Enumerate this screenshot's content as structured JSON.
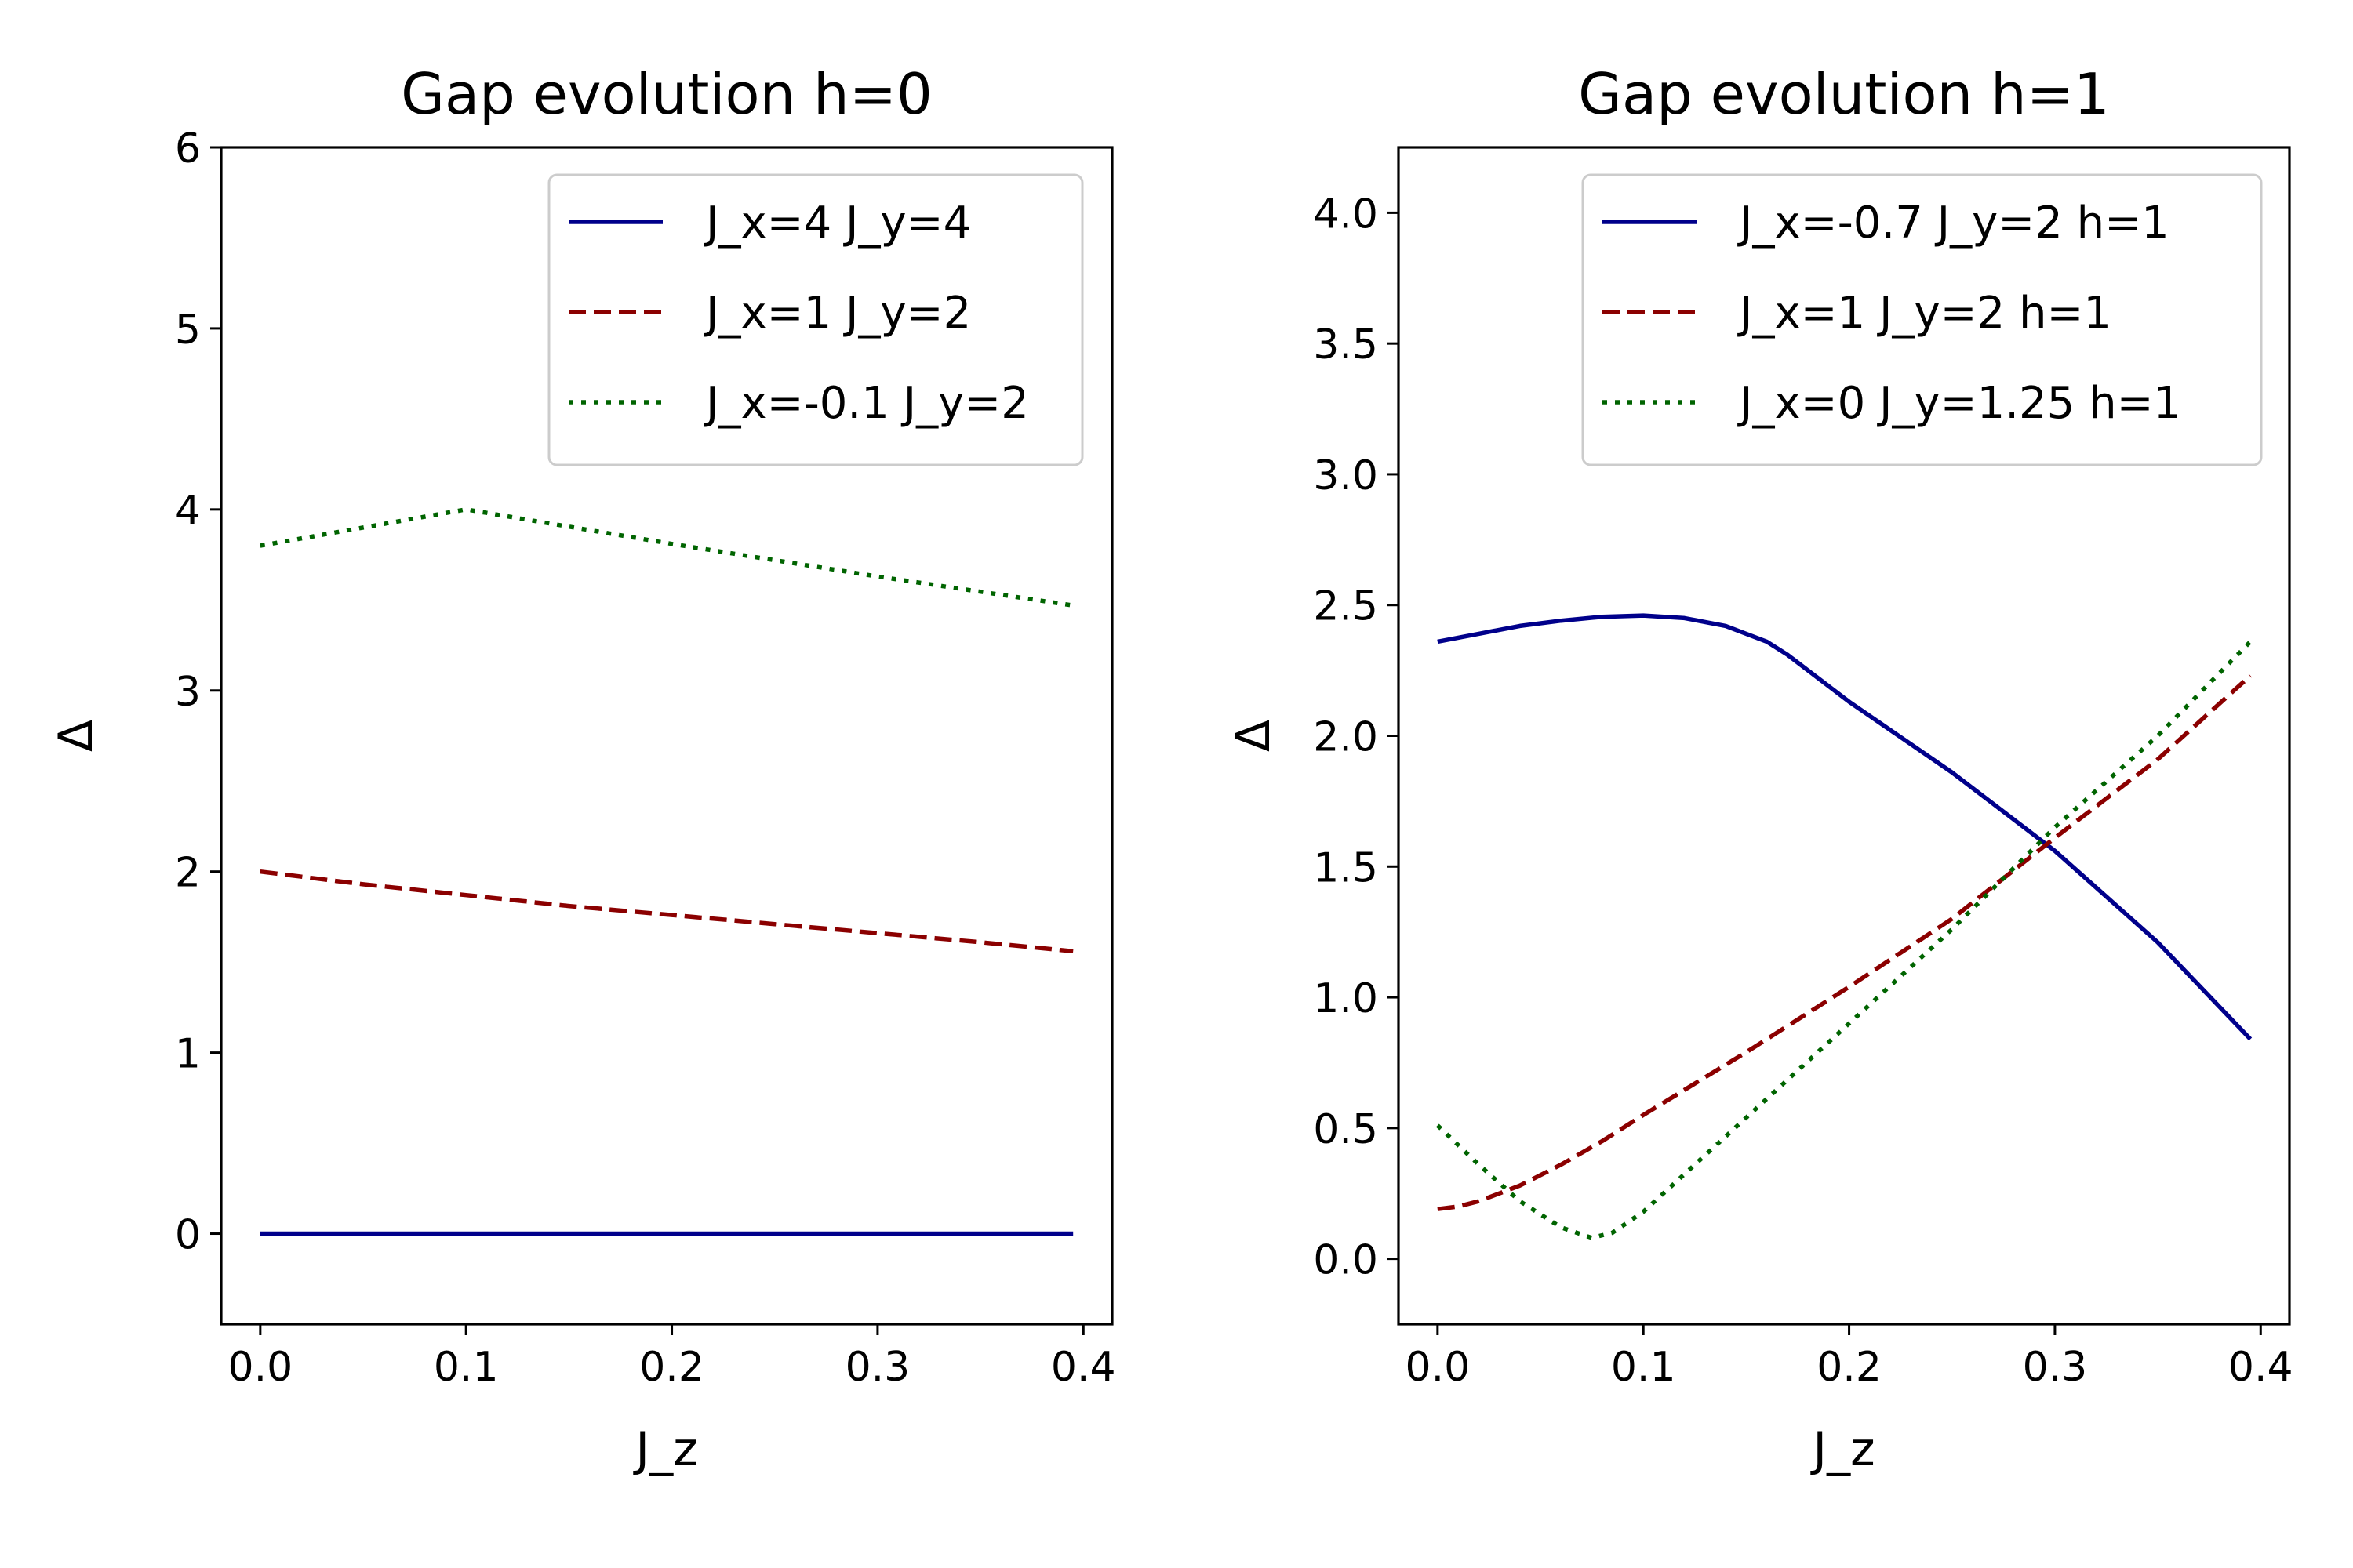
{
  "chart_data": [
    {
      "type": "line",
      "title": "Gap evolution h=0",
      "xlabel": "J_z",
      "ylabel": "Δ",
      "xlim": [
        -0.019,
        0.414
      ],
      "ylim": [
        -0.5,
        6
      ],
      "xticks": [
        "0.0",
        "0.1",
        "0.2",
        "0.3",
        "0.4"
      ],
      "xtick_values": [
        0,
        0.1,
        0.2,
        0.3,
        0.4
      ],
      "yticks": [
        "0",
        "1",
        "2",
        "3",
        "4",
        "5",
        "6"
      ],
      "ytick_values": [
        0,
        1,
        2,
        3,
        4,
        5,
        6
      ],
      "legend_position": "top-right",
      "series": [
        {
          "name": "J_x=4 J_y=4",
          "legend": {
            "a": "J",
            "as": "x",
            "b": "=4 ",
            "c": "J",
            "cs": "y",
            "d": "=4"
          },
          "color": "#00008b",
          "style": "solid",
          "x": [
            0,
            0.1,
            0.2,
            0.3,
            0.395
          ],
          "y": [
            0,
            0,
            0,
            0,
            0
          ]
        },
        {
          "name": "J_x=1 J_y=2",
          "legend": {
            "a": "J",
            "as": "x",
            "b": "=1 ",
            "c": "J",
            "cs": "y",
            "d": "=2"
          },
          "color": "#8b0000",
          "style": "dashed",
          "x": [
            0,
            0.05,
            0.1,
            0.15,
            0.2,
            0.25,
            0.3,
            0.35,
            0.395
          ],
          "y": [
            2.0,
            1.93,
            1.87,
            1.81,
            1.76,
            1.71,
            1.66,
            1.61,
            1.56
          ]
        },
        {
          "name": "J_x=-0.1 J_y=2",
          "legend": {
            "a": "J",
            "as": "x",
            "b": "=-0.1 ",
            "c": "J",
            "cs": "y",
            "d": "=2"
          },
          "color": "#006400",
          "style": "dotted",
          "x": [
            0,
            0.1,
            0.2,
            0.3,
            0.395
          ],
          "y": [
            3.8,
            4.0,
            3.81,
            3.63,
            3.47
          ]
        }
      ]
    },
    {
      "type": "line",
      "title": "Gap evolution h=1",
      "xlabel": "J_z",
      "ylabel": "Δ",
      "xlim": [
        -0.019,
        0.414
      ],
      "ylim": [
        -0.25,
        4.25
      ],
      "xticks": [
        "0.0",
        "0.1",
        "0.2",
        "0.3",
        "0.4"
      ],
      "xtick_values": [
        0,
        0.1,
        0.2,
        0.3,
        0.4
      ],
      "yticks": [
        "0.0",
        "0.5",
        "1.0",
        "1.5",
        "2.0",
        "2.5",
        "3.0",
        "3.5",
        "4.0"
      ],
      "ytick_values": [
        0,
        0.5,
        1.0,
        1.5,
        2.0,
        2.5,
        3.0,
        3.5,
        4.0
      ],
      "legend_position": "top-right",
      "series": [
        {
          "name": "J_x=-0.7 J_y=2 h=1",
          "legend": {
            "a": "J",
            "as": "x",
            "b": "=-0.7 ",
            "c": "J",
            "cs": "y",
            "d": "=2 ",
            "e": "h",
            "f": "=1"
          },
          "color": "#00008b",
          "style": "solid",
          "x": [
            0,
            0.02,
            0.04,
            0.06,
            0.08,
            0.1,
            0.12,
            0.14,
            0.16,
            0.17,
            0.18,
            0.2,
            0.25,
            0.3,
            0.35,
            0.395
          ],
          "y": [
            2.36,
            2.39,
            2.42,
            2.44,
            2.455,
            2.46,
            2.45,
            2.42,
            2.36,
            2.31,
            2.25,
            2.13,
            1.86,
            1.56,
            1.21,
            0.84
          ]
        },
        {
          "name": "J_x=1 J_y=2 h=1",
          "legend": {
            "a": "J",
            "as": "x",
            "b": "=1 ",
            "c": "J",
            "cs": "y",
            "d": "=2 ",
            "e": "h",
            "f": "=1"
          },
          "color": "#8b0000",
          "style": "dashed",
          "x": [
            0,
            0.01,
            0.02,
            0.04,
            0.06,
            0.08,
            0.1,
            0.15,
            0.2,
            0.25,
            0.3,
            0.35,
            0.395
          ],
          "y": [
            0.19,
            0.2,
            0.22,
            0.28,
            0.36,
            0.45,
            0.55,
            0.79,
            1.04,
            1.3,
            1.61,
            1.91,
            2.23
          ]
        },
        {
          "name": "J_x=0 J_y=1.25 h=1",
          "legend": {
            "a": "J",
            "as": "x",
            "b": "=0 ",
            "c": "J",
            "cs": "y",
            "d": "=1.25 ",
            "e": "h",
            "f": "=1"
          },
          "color": "#006400",
          "style": "dotted",
          "x": [
            0,
            0.02,
            0.04,
            0.06,
            0.075,
            0.085,
            0.1,
            0.15,
            0.2,
            0.25,
            0.3,
            0.35,
            0.395
          ],
          "y": [
            0.51,
            0.36,
            0.22,
            0.12,
            0.08,
            0.1,
            0.18,
            0.54,
            0.9,
            1.26,
            1.65,
            2.0,
            2.36
          ]
        }
      ]
    }
  ]
}
